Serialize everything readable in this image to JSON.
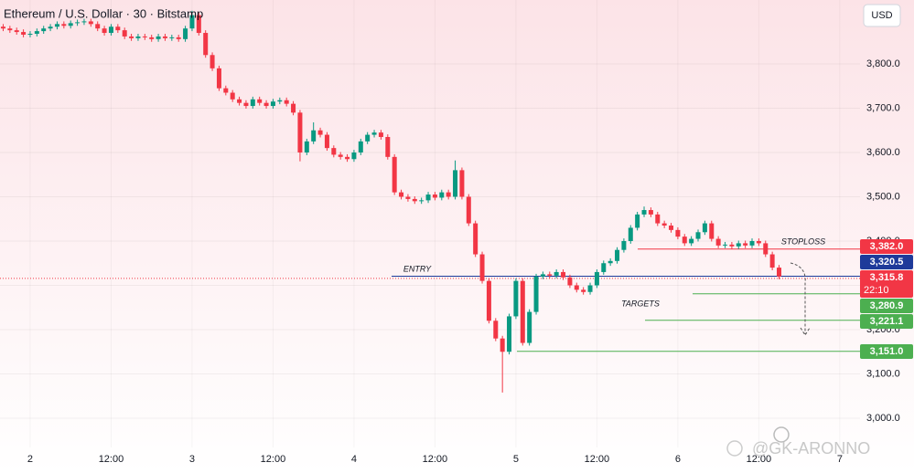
{
  "chart_data": {
    "type": "candlestick",
    "title": "Ethereum / U.S. Dollar · 30 · Bitstamp",
    "currency": "USD",
    "up_color": "#089981",
    "down_color": "#f23645",
    "x": [
      -4,
      -3,
      -2,
      -1,
      0,
      1,
      2,
      3,
      4,
      5,
      6,
      7,
      8,
      9,
      10,
      11,
      12,
      13,
      14,
      15,
      16,
      17,
      18,
      19,
      20,
      21,
      22,
      23,
      24,
      25,
      26,
      27,
      28,
      29,
      30,
      31,
      32,
      33,
      34,
      35,
      36,
      37,
      38,
      39,
      40,
      41,
      42,
      43,
      44,
      45,
      46,
      47,
      48,
      49,
      50,
      51,
      52,
      53,
      54,
      55,
      56,
      57,
      58,
      59,
      60,
      61,
      62,
      63,
      64,
      65,
      66,
      67,
      68,
      69,
      70,
      71,
      72,
      73,
      74,
      75,
      76,
      77,
      78,
      79,
      80,
      81,
      82,
      83,
      84,
      85,
      86,
      87,
      88,
      89,
      90,
      91,
      92,
      93,
      94,
      95,
      96,
      97,
      98,
      99,
      100,
      101,
      102,
      103,
      104,
      105,
      106,
      107,
      108,
      109,
      110,
      111
    ],
    "open": [
      3884,
      3880,
      3876,
      3872,
      3866,
      3868,
      3874,
      3880,
      3884,
      3890,
      3886,
      3892,
      3894,
      3896,
      3890,
      3880,
      3870,
      3884,
      3876,
      3862,
      3858,
      3862,
      3860,
      3856,
      3862,
      3858,
      3860,
      3856,
      3880,
      3910,
      3870,
      3820,
      3790,
      3745,
      3735,
      3720,
      3712,
      3705,
      3720,
      3712,
      3705,
      3715,
      3718,
      3710,
      3690,
      3600,
      3625,
      3650,
      3640,
      3610,
      3595,
      3590,
      3585,
      3600,
      3625,
      3640,
      3645,
      3635,
      3590,
      3510,
      3500,
      3495,
      3490,
      3492,
      3505,
      3498,
      3510,
      3500,
      3560,
      3500,
      3440,
      3370,
      3310,
      3220,
      3180,
      3150,
      3230,
      3310,
      3170,
      3240,
      3320,
      3325,
      3322,
      3330,
      3318,
      3300,
      3290,
      3285,
      3300,
      3330,
      3350,
      3355,
      3380,
      3400,
      3430,
      3460,
      3470,
      3460,
      3440,
      3435,
      3425,
      3410,
      3395,
      3405,
      3420,
      3440,
      3405,
      3390,
      3392,
      3388,
      3395,
      3390,
      3400,
      3395,
      3370,
      3340
    ],
    "high": [
      3890,
      3886,
      3882,
      3878,
      3874,
      3880,
      3886,
      3890,
      3896,
      3896,
      3898,
      3900,
      3902,
      3902,
      3896,
      3886,
      3890,
      3890,
      3882,
      3868,
      3868,
      3868,
      3866,
      3868,
      3868,
      3866,
      3866,
      3886,
      3920,
      3916,
      3876,
      3826,
      3796,
      3751,
      3741,
      3726,
      3718,
      3726,
      3726,
      3718,
      3721,
      3724,
      3724,
      3716,
      3696,
      3631,
      3668,
      3656,
      3646,
      3616,
      3601,
      3596,
      3606,
      3631,
      3646,
      3651,
      3651,
      3641,
      3596,
      3516,
      3506,
      3501,
      3498,
      3511,
      3511,
      3516,
      3516,
      3582,
      3566,
      3506,
      3446,
      3376,
      3316,
      3226,
      3186,
      3236,
      3316,
      3316,
      3246,
      3326,
      3331,
      3331,
      3336,
      3336,
      3324,
      3306,
      3296,
      3306,
      3336,
      3356,
      3361,
      3386,
      3406,
      3436,
      3466,
      3478,
      3476,
      3466,
      3446,
      3441,
      3431,
      3416,
      3411,
      3426,
      3446,
      3446,
      3411,
      3398,
      3398,
      3401,
      3401,
      3406,
      3406,
      3401,
      3376,
      3346
    ],
    "low": [
      3874,
      3870,
      3866,
      3860,
      3860,
      3862,
      3868,
      3874,
      3878,
      3880,
      3880,
      3886,
      3888,
      3884,
      3874,
      3864,
      3864,
      3870,
      3856,
      3852,
      3852,
      3854,
      3850,
      3850,
      3852,
      3852,
      3850,
      3850,
      3874,
      3864,
      3814,
      3784,
      3739,
      3729,
      3714,
      3706,
      3699,
      3699,
      3706,
      3699,
      3699,
      3709,
      3704,
      3684,
      3580,
      3594,
      3619,
      3634,
      3604,
      3589,
      3584,
      3579,
      3579,
      3594,
      3619,
      3634,
      3629,
      3584,
      3504,
      3494,
      3489,
      3484,
      3484,
      3486,
      3492,
      3492,
      3494,
      3494,
      3494,
      3434,
      3364,
      3304,
      3214,
      3174,
      3058,
      3144,
      3224,
      3164,
      3164,
      3234,
      3314,
      3316,
      3316,
      3312,
      3294,
      3284,
      3279,
      3279,
      3294,
      3324,
      3344,
      3349,
      3374,
      3394,
      3424,
      3454,
      3454,
      3434,
      3429,
      3419,
      3404,
      3389,
      3389,
      3399,
      3414,
      3399,
      3384,
      3384,
      3382,
      3382,
      3384,
      3384,
      3389,
      3364,
      3334,
      3314
    ],
    "close": [
      3880,
      3876,
      3872,
      3866,
      3868,
      3874,
      3880,
      3884,
      3890,
      3886,
      3892,
      3894,
      3896,
      3890,
      3880,
      3870,
      3884,
      3876,
      3862,
      3858,
      3862,
      3860,
      3856,
      3862,
      3858,
      3860,
      3856,
      3880,
      3910,
      3870,
      3820,
      3790,
      3745,
      3735,
      3720,
      3712,
      3705,
      3720,
      3712,
      3705,
      3715,
      3718,
      3710,
      3690,
      3600,
      3625,
      3650,
      3640,
      3610,
      3595,
      3590,
      3585,
      3600,
      3625,
      3640,
      3645,
      3635,
      3590,
      3510,
      3500,
      3495,
      3490,
      3492,
      3505,
      3498,
      3510,
      3500,
      3560,
      3500,
      3440,
      3370,
      3310,
      3220,
      3180,
      3150,
      3230,
      3310,
      3170,
      3240,
      3320,
      3325,
      3322,
      3330,
      3318,
      3300,
      3290,
      3285,
      3300,
      3330,
      3350,
      3355,
      3380,
      3400,
      3430,
      3460,
      3470,
      3460,
      3440,
      3435,
      3425,
      3410,
      3395,
      3405,
      3420,
      3440,
      3405,
      3390,
      3392,
      3388,
      3395,
      3390,
      3400,
      3395,
      3370,
      3340,
      3320
    ],
    "xlim": [
      -4.47,
      123
    ],
    "xticks": [
      {
        "value": 0,
        "label": "2"
      },
      {
        "value": 12,
        "label": "12:00"
      },
      {
        "value": 24,
        "label": "3"
      },
      {
        "value": 36,
        "label": "12:00"
      },
      {
        "value": 48,
        "label": "4"
      },
      {
        "value": 60,
        "label": "12:00"
      },
      {
        "value": 72,
        "label": "5"
      },
      {
        "value": 84,
        "label": "12:00"
      },
      {
        "value": 96,
        "label": "6"
      },
      {
        "value": 108,
        "label": "12:00"
      },
      {
        "value": 120,
        "label": "7"
      }
    ],
    "ylim": [
      2934,
      3944.3
    ],
    "yticks": [
      {
        "value": 3000,
        "label": "3,000.0"
      },
      {
        "value": 3100,
        "label": "3,100.0"
      },
      {
        "value": 3200,
        "label": "3,200.0"
      },
      {
        "value": 3300,
        "label": "3,300.0"
      },
      {
        "value": 3400,
        "label": "3,400.0"
      },
      {
        "value": 3500,
        "label": "3,500.0"
      },
      {
        "value": 3600,
        "label": "3,600.0"
      },
      {
        "value": 3700,
        "label": "3,700.0"
      },
      {
        "value": 3800,
        "label": "3,800.0"
      }
    ],
    "grid": true,
    "levels": [
      {
        "name": "STOPLOSS",
        "value": 3382.0,
        "label": "3,382.0",
        "color": "#f23645"
      },
      {
        "name": "ENTRY",
        "value": 3320.5,
        "label": "3,320.5",
        "color": "#1e3a9a"
      },
      {
        "value": 3280.9,
        "label": "3,280.9",
        "color": "#4caf50"
      },
      {
        "value": 3221.1,
        "label": "3,221.1",
        "color": "#4caf50"
      },
      {
        "value": 3151.0,
        "label": "3,151.0",
        "color": "#4caf50"
      }
    ],
    "targets_label": "TARGETS",
    "current_price": {
      "value": 3315.8,
      "label": "3,315.8",
      "countdown": "22:10",
      "color": "#f23645"
    },
    "watermark": "@GK-ARONNO"
  }
}
